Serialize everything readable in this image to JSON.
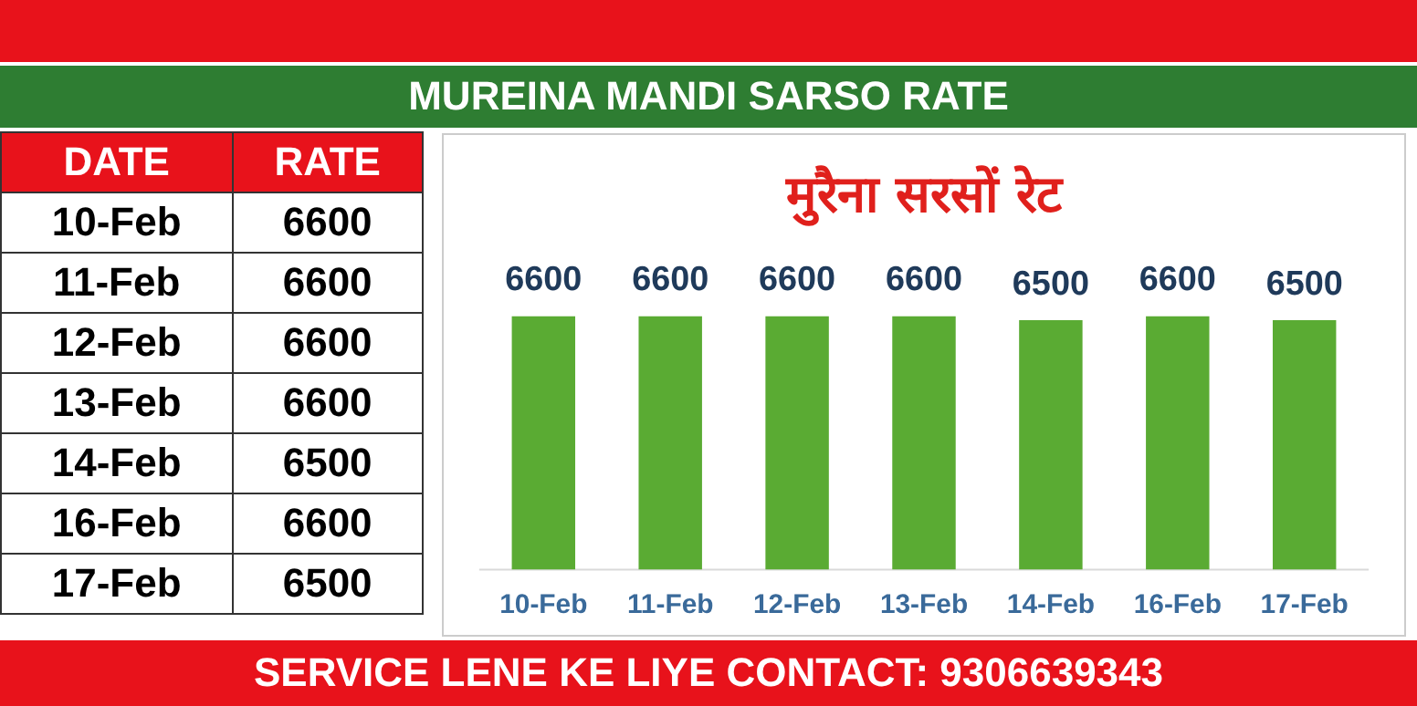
{
  "chart_data": {
    "type": "bar",
    "title": "मुरैना सरसों रेट",
    "subtitle": "MUREINA MANDI SARSO RATE",
    "categories": [
      "10-Feb",
      "11-Feb",
      "12-Feb",
      "13-Feb",
      "14-Feb",
      "16-Feb",
      "17-Feb"
    ],
    "values": [
      6600,
      6600,
      6600,
      6600,
      6500,
      6600,
      6500
    ],
    "value_labels": [
      "6600",
      "6600",
      "6600",
      "6600",
      "6500",
      "6600",
      "6500"
    ],
    "color": "#5aab33",
    "grid": false,
    "legend": false,
    "annotations": [
      "DATE",
      "RATE",
      "SERVICE LENE KE LIYE CONTACT: 9306639343"
    ]
  }
}
